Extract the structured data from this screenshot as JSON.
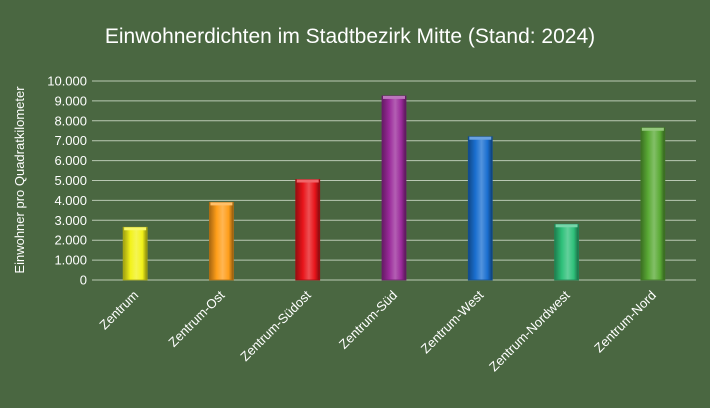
{
  "chart_data": {
    "type": "bar",
    "title": "Einwohnerdichten im Stadtbezirk Mitte (Stand: 2024)",
    "xlabel": "",
    "ylabel": "Einwohner pro Quadratkilometer",
    "ylim": [
      0,
      10000
    ],
    "yticks": [
      0,
      1000,
      2000,
      3000,
      4000,
      5000,
      6000,
      7000,
      8000,
      9000,
      10000
    ],
    "ytick_labels": [
      "0",
      "1.000",
      "2.000",
      "3.000",
      "4.000",
      "5.000",
      "6.000",
      "7.000",
      "8.000",
      "9.000",
      "10.000"
    ],
    "grid": true,
    "categories": [
      "Zentrum",
      "Zentrum-Ost",
      "Zentrum-Südost",
      "Zentrum-Süd",
      "Zentrum-West",
      "Zentrum-Nordwest",
      "Zentrum-Nord"
    ],
    "values": [
      2650,
      3900,
      5050,
      9250,
      7200,
      2800,
      7650
    ],
    "colors": [
      "#f2f21a",
      "#ff9e1a",
      "#e8141a",
      "#9a2a9a",
      "#1a6fd0",
      "#2ec07a",
      "#5aaa35"
    ]
  }
}
